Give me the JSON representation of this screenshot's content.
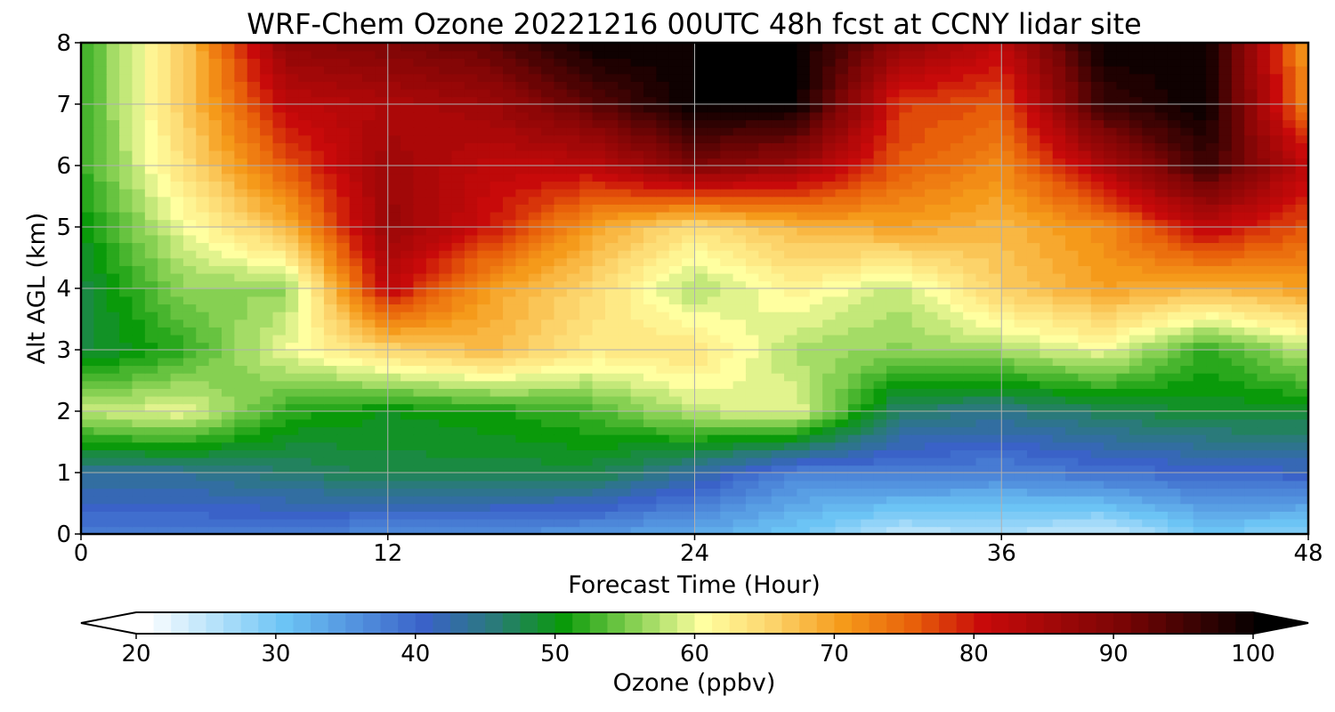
{
  "chart_data": {
    "type": "heatmap",
    "title": "WRF-Chem Ozone  20221216 00UTC 48h fcst at CCNY lidar site",
    "xlabel": "Forecast Time (Hour)",
    "ylabel": "Alt AGL (km)",
    "xlim": [
      0,
      48
    ],
    "ylim": [
      0,
      8
    ],
    "x_ticks": [
      0,
      12,
      24,
      36,
      48
    ],
    "y_ticks": [
      0,
      1,
      2,
      3,
      4,
      5,
      6,
      7,
      8
    ],
    "grid": true,
    "colorbar": {
      "label": "Ozone  (ppbv)",
      "range": [
        20,
        100
      ],
      "ticks": [
        20,
        30,
        40,
        50,
        60,
        70,
        80,
        90,
        100
      ],
      "extend": "both",
      "orientation": "horizontal",
      "colormap": [
        [
          20,
          "#ffffff"
        ],
        [
          30,
          "#6cc4f5"
        ],
        [
          40,
          "#3a62c8"
        ],
        [
          45,
          "#2a7a7a"
        ],
        [
          50,
          "#0a9a0a"
        ],
        [
          55,
          "#86d052"
        ],
        [
          60,
          "#ffffa0"
        ],
        [
          65,
          "#fcd36a"
        ],
        [
          70,
          "#f59a1a"
        ],
        [
          75,
          "#e8600a"
        ],
        [
          80,
          "#c80a0a"
        ],
        [
          90,
          "#7a0505"
        ],
        [
          100,
          "#000000"
        ]
      ]
    },
    "z_grid": {
      "x": [
        0,
        4,
        8,
        12,
        16,
        20,
        24,
        28,
        32,
        36,
        40,
        44,
        48
      ],
      "y": [
        0,
        1,
        2,
        3,
        4,
        5,
        6,
        7,
        8
      ],
      "z": [
        [
          38,
          38,
          38,
          36,
          36,
          35,
          33,
          30,
          25,
          26,
          24,
          30,
          28
        ],
        [
          44,
          44,
          46,
          48,
          48,
          48,
          43,
          37,
          38,
          37,
          39,
          40,
          41
        ],
        [
          58,
          60,
          52,
          50,
          51,
          53,
          58,
          60,
          46,
          45,
          47,
          49,
          49
        ],
        [
          48,
          52,
          60,
          65,
          68,
          63,
          64,
          57,
          56,
          57,
          60,
          52,
          58
        ],
        [
          48,
          56,
          56,
          82,
          70,
          65,
          57,
          62,
          58,
          66,
          70,
          68,
          70
        ],
        [
          50,
          60,
          68,
          87,
          80,
          70,
          64,
          68,
          70,
          68,
          72,
          82,
          76
        ],
        [
          52,
          64,
          76,
          86,
          82,
          82,
          90,
          86,
          76,
          72,
          84,
          96,
          82
        ],
        [
          52,
          66,
          82,
          84,
          86,
          93,
          100,
          100,
          78,
          76,
          96,
          100,
          72
        ],
        [
          52,
          66,
          88,
          90,
          93,
          100,
          100,
          100,
          88,
          82,
          100,
          100,
          70
        ]
      ]
    }
  }
}
